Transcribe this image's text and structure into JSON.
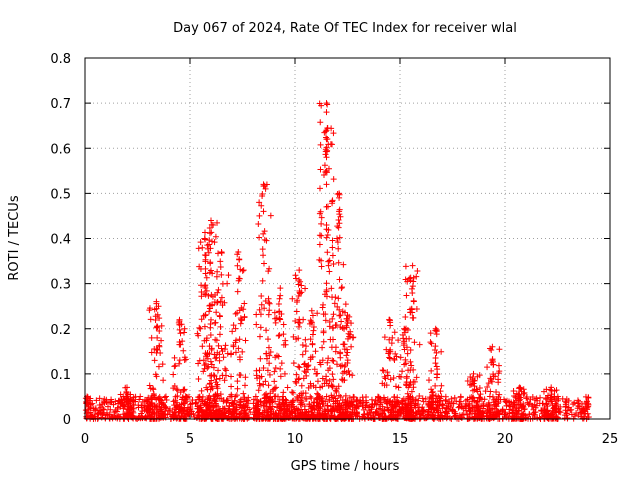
{
  "chart_data": {
    "type": "scatter",
    "title": "Day 067 of 2024, Rate Of TEC Index for receiver wlal",
    "xlabel": "GPS time / hours",
    "ylabel": "ROTI / TECUs",
    "xlim": [
      0,
      25
    ],
    "ylim": [
      0,
      0.8
    ],
    "xticks": [
      0,
      5,
      10,
      15,
      20,
      25
    ],
    "yticks": [
      0,
      0.1,
      0.2,
      0.3,
      0.4,
      0.5,
      0.6,
      0.7,
      0.8
    ],
    "grid": true,
    "marker": "+",
    "color": "#ff0000",
    "background_noise": {
      "x_range": [
        0,
        24
      ],
      "y_range": [
        0,
        0.05
      ],
      "count": 1400
    },
    "peaks": [
      {
        "x": 0.1,
        "peak": 0.05
      },
      {
        "x": 2.0,
        "peak": 0.07
      },
      {
        "x": 3.4,
        "peak": 0.26
      },
      {
        "x": 4.5,
        "peak": 0.22
      },
      {
        "x": 5.7,
        "peak": 0.4
      },
      {
        "x": 6.0,
        "peak": 0.44
      },
      {
        "x": 6.5,
        "peak": 0.37
      },
      {
        "x": 7.3,
        "peak": 0.37
      },
      {
        "x": 8.5,
        "peak": 0.52
      },
      {
        "x": 9.3,
        "peak": 0.29
      },
      {
        "x": 10.2,
        "peak": 0.33
      },
      {
        "x": 10.8,
        "peak": 0.24
      },
      {
        "x": 11.5,
        "peak": 0.7
      },
      {
        "x": 12.1,
        "peak": 0.5
      },
      {
        "x": 12.5,
        "peak": 0.23
      },
      {
        "x": 14.5,
        "peak": 0.22
      },
      {
        "x": 15.2,
        "peak": 0.2
      },
      {
        "x": 15.6,
        "peak": 0.34
      },
      {
        "x": 16.7,
        "peak": 0.2
      },
      {
        "x": 18.5,
        "peak": 0.1
      },
      {
        "x": 19.4,
        "peak": 0.16
      },
      {
        "x": 20.7,
        "peak": 0.07
      },
      {
        "x": 22.2,
        "peak": 0.07
      }
    ],
    "points": [
      [
        0.1,
        0.05
      ],
      [
        2.0,
        0.07
      ],
      [
        3.4,
        0.26
      ],
      [
        3.5,
        0.25
      ],
      [
        4.5,
        0.22
      ],
      [
        4.6,
        0.21
      ],
      [
        5.7,
        0.4
      ],
      [
        6.0,
        0.44
      ],
      [
        6.1,
        0.43
      ],
      [
        6.5,
        0.37
      ],
      [
        7.3,
        0.37
      ],
      [
        8.5,
        0.52
      ],
      [
        8.6,
        0.51
      ],
      [
        8.5,
        0.46
      ],
      [
        9.3,
        0.29
      ],
      [
        10.2,
        0.33
      ],
      [
        10.8,
        0.24
      ],
      [
        11.5,
        0.7
      ],
      [
        11.5,
        0.68
      ],
      [
        11.5,
        0.64
      ],
      [
        11.5,
        0.62
      ],
      [
        11.5,
        0.58
      ],
      [
        11.5,
        0.55
      ],
      [
        11.5,
        0.52
      ],
      [
        11.5,
        0.47
      ],
      [
        11.5,
        0.43
      ],
      [
        11.6,
        0.34
      ],
      [
        12.1,
        0.5
      ],
      [
        12.1,
        0.49
      ],
      [
        12.1,
        0.46
      ],
      [
        12.0,
        0.4
      ],
      [
        12.5,
        0.23
      ],
      [
        14.5,
        0.22
      ],
      [
        15.2,
        0.2
      ],
      [
        15.6,
        0.34
      ],
      [
        16.7,
        0.2
      ],
      [
        18.5,
        0.1
      ],
      [
        19.4,
        0.16
      ],
      [
        20.7,
        0.07
      ],
      [
        22.2,
        0.07
      ]
    ]
  }
}
